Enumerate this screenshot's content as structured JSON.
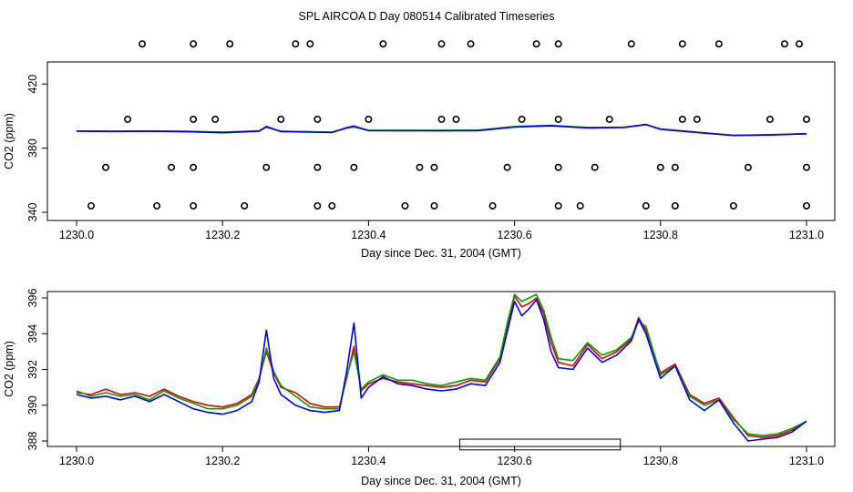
{
  "page_title": "SPL AIRCOA D  Day 080514  Calibrated Timeseries",
  "colors": {
    "red": "#e00000",
    "green": "#00a000",
    "blue": "#0000e0",
    "axis": "#000000"
  },
  "chart_data": [
    {
      "type": "line",
      "panel": "top",
      "xlabel": "Day since Dec. 31, 2004 (GMT)",
      "ylabel": "CO2 (ppm)",
      "xlim": [
        1230.0,
        1231.0
      ],
      "ylim": [
        340,
        440
      ],
      "x_ticks": [
        1230.0,
        1230.2,
        1230.4,
        1230.6,
        1230.8,
        1231.0
      ],
      "x_tick_labels": [
        "1230.0",
        "1230.2",
        "1230.4",
        "1230.6",
        "1230.8",
        "1231.0"
      ],
      "y_ticks": [
        340,
        380,
        420
      ],
      "y_tick_labels": [
        "340",
        "380",
        "420"
      ],
      "series": [
        {
          "name": "red",
          "color": "#e00000",
          "x": [
            1230.0,
            1230.05,
            1230.1,
            1230.15,
            1230.2,
            1230.25,
            1230.26,
            1230.28,
            1230.35,
            1230.37,
            1230.38,
            1230.4,
            1230.5,
            1230.55,
            1230.6,
            1230.65,
            1230.7,
            1230.75,
            1230.78,
            1230.8,
            1230.85,
            1230.9,
            1230.95,
            1231.0
          ],
          "y": [
            390.7,
            390.5,
            390.7,
            390.5,
            390.0,
            390.8,
            393.0,
            390.5,
            390.0,
            392.5,
            393.2,
            391.0,
            391.0,
            391.0,
            393.3,
            394.0,
            392.8,
            393.0,
            394.6,
            392.0,
            390.0,
            388.0,
            388.4,
            389.0
          ]
        },
        {
          "name": "green",
          "color": "#00a000",
          "x": [
            1230.0,
            1230.05,
            1230.1,
            1230.15,
            1230.2,
            1230.25,
            1230.26,
            1230.28,
            1230.35,
            1230.37,
            1230.38,
            1230.4,
            1230.5,
            1230.55,
            1230.6,
            1230.65,
            1230.7,
            1230.75,
            1230.78,
            1230.8,
            1230.85,
            1230.9,
            1230.95,
            1231.0
          ],
          "y": [
            390.7,
            390.5,
            390.6,
            390.4,
            389.9,
            390.7,
            393.1,
            390.6,
            389.9,
            392.6,
            393.3,
            391.1,
            391.1,
            391.2,
            393.5,
            394.2,
            392.9,
            393.1,
            394.7,
            391.9,
            389.9,
            388.0,
            388.3,
            389.0
          ]
        },
        {
          "name": "blue",
          "color": "#0000e0",
          "x": [
            1230.0,
            1230.05,
            1230.1,
            1230.15,
            1230.2,
            1230.25,
            1230.26,
            1230.28,
            1230.35,
            1230.37,
            1230.38,
            1230.4,
            1230.5,
            1230.55,
            1230.6,
            1230.65,
            1230.7,
            1230.75,
            1230.78,
            1230.8,
            1230.85,
            1230.9,
            1230.95,
            1231.0
          ],
          "y": [
            390.6,
            390.4,
            390.5,
            390.2,
            389.6,
            390.5,
            393.6,
            390.3,
            389.7,
            392.8,
            393.8,
            390.9,
            390.8,
            390.9,
            393.2,
            393.9,
            392.6,
            392.9,
            394.8,
            391.7,
            389.7,
            387.9,
            388.2,
            389.0
          ]
        }
      ],
      "outlier_points": {
        "x": [
          1230.09,
          1230.16,
          1230.21,
          1230.3,
          1230.32,
          1230.42,
          1230.5,
          1230.54,
          1230.63,
          1230.66,
          1230.76,
          1230.83,
          1230.88,
          1230.97,
          1230.99,
          1230.07,
          1230.16,
          1230.19,
          1230.28,
          1230.33,
          1230.4,
          1230.5,
          1230.52,
          1230.61,
          1230.66,
          1230.73,
          1230.83,
          1230.85,
          1230.95,
          1231.0,
          1230.04,
          1230.13,
          1230.16,
          1230.26,
          1230.33,
          1230.38,
          1230.47,
          1230.49,
          1230.59,
          1230.66,
          1230.71,
          1230.8,
          1230.82,
          1230.92,
          1231.0,
          1230.02,
          1230.11,
          1230.16,
          1230.23,
          1230.33,
          1230.35,
          1230.45,
          1230.49,
          1230.57,
          1230.66,
          1230.69,
          1230.78,
          1230.82,
          1230.9,
          1231.0
        ],
        "y": [
          445,
          445,
          445,
          445,
          445,
          445,
          445,
          445,
          445,
          445,
          445,
          445,
          445,
          445,
          445,
          398,
          398,
          398,
          398,
          398,
          398,
          398,
          398,
          398,
          398,
          398,
          398,
          398,
          398,
          398,
          368,
          368,
          368,
          368,
          368,
          368,
          368,
          368,
          368,
          368,
          368,
          368,
          368,
          368,
          368,
          344,
          344,
          344,
          344,
          344,
          344,
          344,
          344,
          344,
          344,
          344,
          344,
          344,
          344,
          344
        ]
      }
    },
    {
      "type": "line",
      "panel": "bottom",
      "xlabel": "Day since Dec. 31, 2004 (GMT)",
      "ylabel": "CO2 (ppm)",
      "xlim": [
        1230.0,
        1231.0
      ],
      "ylim": [
        388,
        396
      ],
      "x_ticks": [
        1230.0,
        1230.2,
        1230.4,
        1230.6,
        1230.8,
        1231.0
      ],
      "x_tick_labels": [
        "1230.0",
        "1230.2",
        "1230.4",
        "1230.6",
        "1230.8",
        "1231.0"
      ],
      "y_ticks": [
        388,
        390,
        392,
        394,
        396
      ],
      "y_tick_labels": [
        "388",
        "390",
        "392",
        "394",
        "396"
      ],
      "series": [
        {
          "name": "red",
          "color": "#e00000",
          "x": [
            1230.0,
            1230.02,
            1230.04,
            1230.06,
            1230.08,
            1230.1,
            1230.12,
            1230.14,
            1230.16,
            1230.18,
            1230.2,
            1230.22,
            1230.24,
            1230.25,
            1230.26,
            1230.27,
            1230.28,
            1230.3,
            1230.32,
            1230.34,
            1230.36,
            1230.37,
            1230.38,
            1230.39,
            1230.4,
            1230.42,
            1230.44,
            1230.46,
            1230.48,
            1230.5,
            1230.52,
            1230.54,
            1230.56,
            1230.58,
            1230.59,
            1230.6,
            1230.61,
            1230.62,
            1230.63,
            1230.64,
            1230.65,
            1230.66,
            1230.68,
            1230.7,
            1230.72,
            1230.74,
            1230.76,
            1230.77,
            1230.78,
            1230.8,
            1230.82,
            1230.84,
            1230.86,
            1230.88,
            1230.9,
            1230.92,
            1230.94,
            1230.96,
            1230.98,
            1231.0
          ],
          "y": [
            390.7,
            390.6,
            390.9,
            390.6,
            390.7,
            390.5,
            390.9,
            390.5,
            390.2,
            390.0,
            389.9,
            390.1,
            390.6,
            391.5,
            393.0,
            391.8,
            391.0,
            390.7,
            390.1,
            389.9,
            389.9,
            391.5,
            393.3,
            390.8,
            391.2,
            391.5,
            391.3,
            391.2,
            391.1,
            391.0,
            391.1,
            391.4,
            391.3,
            392.6,
            394.4,
            396.1,
            395.5,
            395.7,
            396.0,
            395.1,
            393.5,
            392.4,
            392.2,
            393.4,
            392.6,
            393.0,
            393.7,
            394.9,
            394.2,
            391.8,
            392.3,
            390.6,
            390.1,
            390.4,
            389.3,
            388.3,
            388.2,
            388.3,
            388.6,
            389.1
          ]
        },
        {
          "name": "green",
          "color": "#00a000",
          "x": [
            1230.0,
            1230.02,
            1230.04,
            1230.06,
            1230.08,
            1230.1,
            1230.12,
            1230.14,
            1230.16,
            1230.18,
            1230.2,
            1230.22,
            1230.24,
            1230.25,
            1230.26,
            1230.27,
            1230.28,
            1230.3,
            1230.32,
            1230.34,
            1230.36,
            1230.37,
            1230.38,
            1230.39,
            1230.4,
            1230.42,
            1230.44,
            1230.46,
            1230.48,
            1230.5,
            1230.52,
            1230.54,
            1230.56,
            1230.58,
            1230.59,
            1230.6,
            1230.61,
            1230.62,
            1230.63,
            1230.64,
            1230.65,
            1230.66,
            1230.68,
            1230.7,
            1230.72,
            1230.74,
            1230.76,
            1230.77,
            1230.78,
            1230.8,
            1230.82,
            1230.84,
            1230.86,
            1230.88,
            1230.9,
            1230.92,
            1230.94,
            1230.96,
            1230.98,
            1231.0
          ],
          "y": [
            390.8,
            390.5,
            390.7,
            390.5,
            390.6,
            390.3,
            390.8,
            390.4,
            390.1,
            389.8,
            389.8,
            390.0,
            390.5,
            391.4,
            393.2,
            391.9,
            391.1,
            390.5,
            389.9,
            389.8,
            389.8,
            391.6,
            393.0,
            390.9,
            391.3,
            391.7,
            391.4,
            391.4,
            391.2,
            391.1,
            391.3,
            391.5,
            391.4,
            392.7,
            394.6,
            396.2,
            395.8,
            396.0,
            396.2,
            395.3,
            393.8,
            392.6,
            392.5,
            393.5,
            392.8,
            393.1,
            393.8,
            394.7,
            394.4,
            391.7,
            392.2,
            390.5,
            390.0,
            390.3,
            389.2,
            388.4,
            388.3,
            388.4,
            388.7,
            389.1
          ]
        },
        {
          "name": "blue",
          "color": "#0000e0",
          "x": [
            1230.0,
            1230.02,
            1230.04,
            1230.06,
            1230.08,
            1230.1,
            1230.12,
            1230.14,
            1230.16,
            1230.18,
            1230.2,
            1230.22,
            1230.24,
            1230.25,
            1230.26,
            1230.27,
            1230.28,
            1230.3,
            1230.32,
            1230.34,
            1230.36,
            1230.37,
            1230.38,
            1230.39,
            1230.4,
            1230.42,
            1230.44,
            1230.46,
            1230.48,
            1230.5,
            1230.52,
            1230.54,
            1230.56,
            1230.58,
            1230.59,
            1230.6,
            1230.61,
            1230.62,
            1230.63,
            1230.64,
            1230.65,
            1230.66,
            1230.68,
            1230.7,
            1230.72,
            1230.74,
            1230.76,
            1230.77,
            1230.78,
            1230.8,
            1230.82,
            1230.84,
            1230.86,
            1230.88,
            1230.9,
            1230.92,
            1230.94,
            1230.96,
            1230.98,
            1231.0
          ],
          "y": [
            390.6,
            390.4,
            390.5,
            390.3,
            390.5,
            390.2,
            390.6,
            390.2,
            389.8,
            389.6,
            389.5,
            389.7,
            390.2,
            391.3,
            394.2,
            391.5,
            390.6,
            390.0,
            389.7,
            389.6,
            389.7,
            391.9,
            394.6,
            390.4,
            391.0,
            391.6,
            391.2,
            391.1,
            390.9,
            390.8,
            390.9,
            391.2,
            391.1,
            392.4,
            394.1,
            395.8,
            395.0,
            395.4,
            395.9,
            394.8,
            393.0,
            392.1,
            392.0,
            393.2,
            392.4,
            392.8,
            393.6,
            394.8,
            394.0,
            391.5,
            392.2,
            390.3,
            389.7,
            390.3,
            389.0,
            388.0,
            388.1,
            388.2,
            388.5,
            389.1
          ]
        }
      ],
      "range_marker": {
        "x_start": 1230.525,
        "x_end": 1230.745,
        "y_bottom": 387.5,
        "y_top": 388.1
      }
    }
  ]
}
